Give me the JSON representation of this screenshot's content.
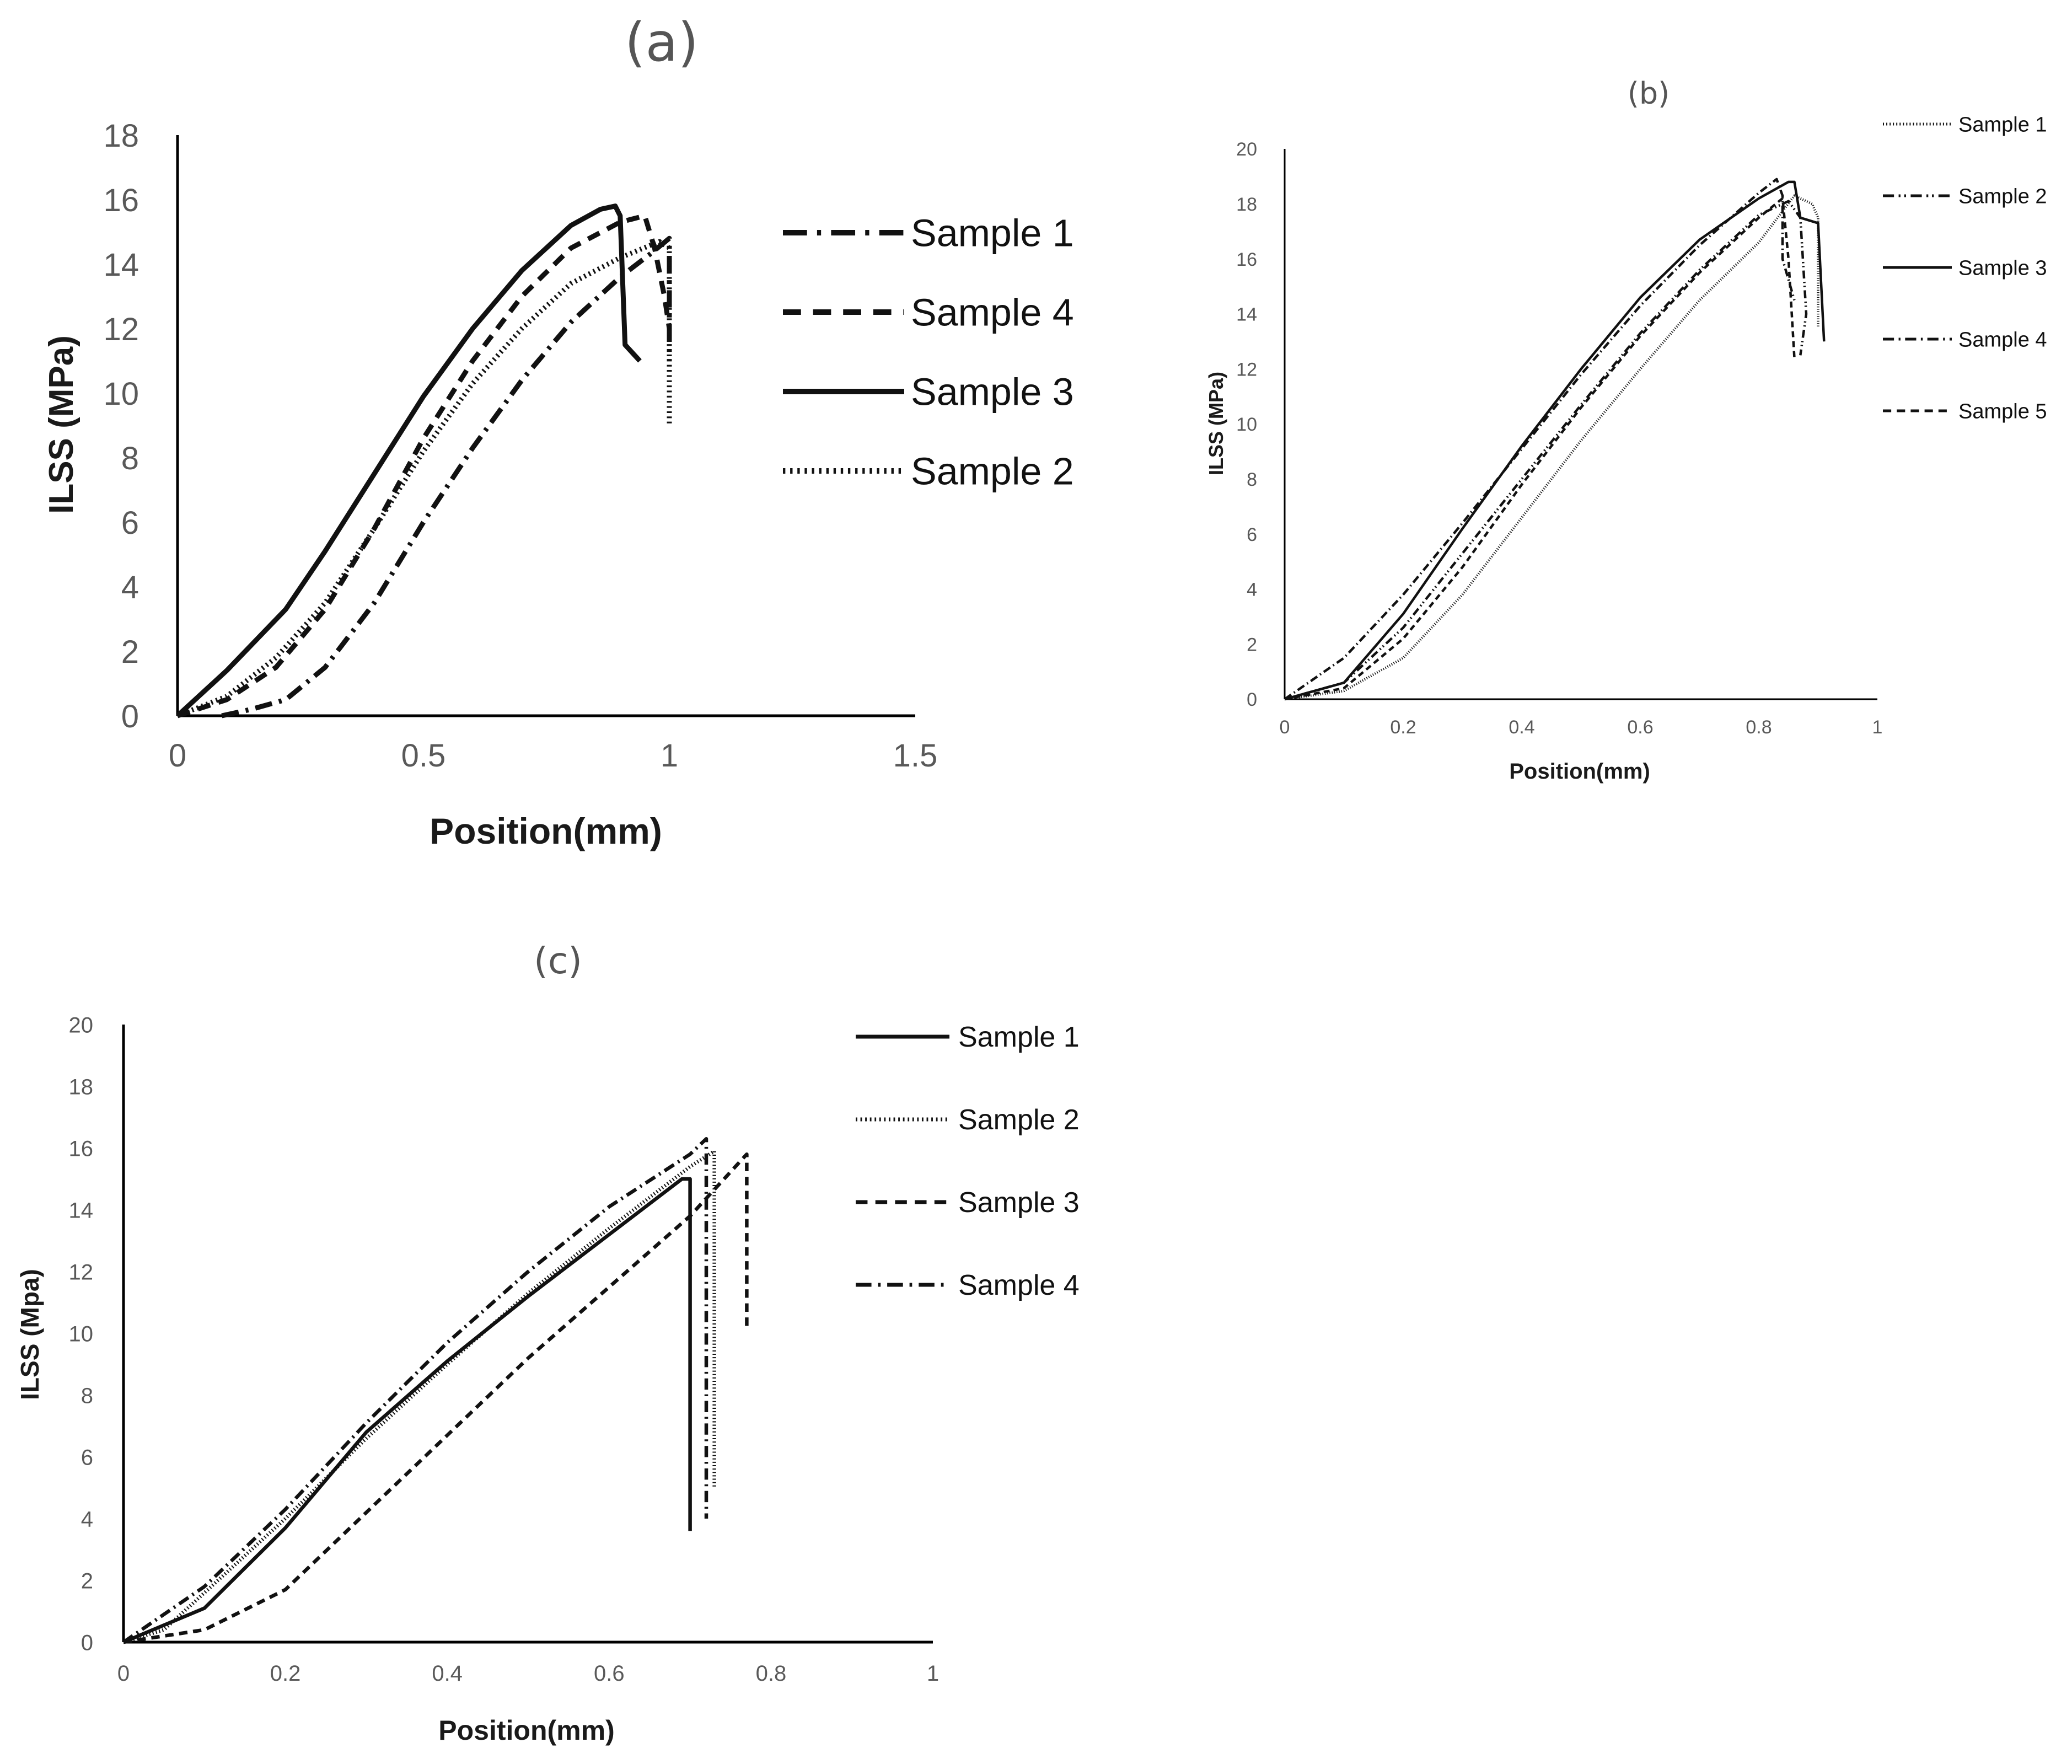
{
  "chart_data": [
    {
      "id": "a",
      "type": "line",
      "title": "(a)",
      "xlabel": "Position(mm)",
      "ylabel": "ILSS (MPa)",
      "xlim": [
        0,
        1.5
      ],
      "ylim": [
        0,
        18
      ],
      "xticks": [
        0,
        0.5,
        1,
        1.5
      ],
      "xtick_labels": [
        "0",
        "0.5",
        "1",
        "1.5"
      ],
      "yticks": [
        0,
        2,
        4,
        6,
        8,
        10,
        12,
        14,
        16,
        18
      ],
      "ytick_labels": [
        "0",
        "2",
        "4",
        "6",
        "8",
        "10",
        "12",
        "14",
        "16",
        "18"
      ],
      "legend_position": "right",
      "series": [
        {
          "name": "Sample 1",
          "style": "dashdot",
          "points": [
            [
              0.09,
              0
            ],
            [
              0.15,
              0.2
            ],
            [
              0.22,
              0.5
            ],
            [
              0.3,
              1.5
            ],
            [
              0.4,
              3.5
            ],
            [
              0.5,
              6
            ],
            [
              0.6,
              8.3
            ],
            [
              0.7,
              10.4
            ],
            [
              0.8,
              12.2
            ],
            [
              0.9,
              13.6
            ],
            [
              0.96,
              14.3
            ],
            [
              1.0,
              14.8
            ],
            [
              1.0,
              11.0
            ]
          ]
        },
        {
          "name": "Sample 4",
          "style": "dashed",
          "points": [
            [
              0,
              0
            ],
            [
              0.1,
              0.5
            ],
            [
              0.2,
              1.5
            ],
            [
              0.3,
              3.3
            ],
            [
              0.4,
              5.8
            ],
            [
              0.5,
              8.6
            ],
            [
              0.6,
              11.0
            ],
            [
              0.7,
              13.0
            ],
            [
              0.8,
              14.5
            ],
            [
              0.9,
              15.3
            ],
            [
              0.95,
              15.5
            ],
            [
              0.97,
              14.5
            ],
            [
              0.99,
              13.0
            ],
            [
              1.0,
              12.0
            ]
          ]
        },
        {
          "name": "Sample 3",
          "style": "solid",
          "points": [
            [
              0,
              0
            ],
            [
              0.1,
              1.4
            ],
            [
              0.22,
              3.3
            ],
            [
              0.3,
              5.1
            ],
            [
              0.4,
              7.5
            ],
            [
              0.5,
              9.9
            ],
            [
              0.6,
              12.0
            ],
            [
              0.7,
              13.8
            ],
            [
              0.8,
              15.2
            ],
            [
              0.86,
              15.7
            ],
            [
              0.89,
              15.8
            ],
            [
              0.9,
              15.5
            ],
            [
              0.91,
              11.5
            ],
            [
              0.94,
              11.0
            ]
          ]
        },
        {
          "name": "Sample 2",
          "style": "dotted",
          "points": [
            [
              0,
              0
            ],
            [
              0.1,
              0.6
            ],
            [
              0.2,
              1.8
            ],
            [
              0.3,
              3.5
            ],
            [
              0.4,
              5.8
            ],
            [
              0.5,
              8.2
            ],
            [
              0.6,
              10.3
            ],
            [
              0.7,
              12.0
            ],
            [
              0.8,
              13.4
            ],
            [
              0.9,
              14.2
            ],
            [
              0.98,
              14.7
            ],
            [
              1.0,
              14.5
            ],
            [
              1.0,
              9.0
            ]
          ]
        }
      ]
    },
    {
      "id": "b",
      "type": "line",
      "title": "(b)",
      "xlabel": "Position(mm)",
      "ylabel": "ILSS (MPa)",
      "xlim": [
        0,
        1
      ],
      "ylim": [
        0,
        20
      ],
      "xticks": [
        0,
        0.2,
        0.4,
        0.6,
        0.8,
        1
      ],
      "xtick_labels": [
        "0",
        "0.2",
        "0.4",
        "0.6",
        "0.8",
        "1"
      ],
      "yticks": [
        0,
        2,
        4,
        6,
        8,
        10,
        12,
        14,
        16,
        18,
        20
      ],
      "ytick_labels": [
        "0",
        "2",
        "4",
        "6",
        "8",
        "10",
        "12",
        "14",
        "16",
        "18",
        "20"
      ],
      "legend_position": "right",
      "series": [
        {
          "name": "Sample 1",
          "style": "dotted",
          "points": [
            [
              0,
              0
            ],
            [
              0.1,
              0.3
            ],
            [
              0.2,
              1.5
            ],
            [
              0.3,
              3.8
            ],
            [
              0.4,
              6.6
            ],
            [
              0.5,
              9.4
            ],
            [
              0.6,
              12.0
            ],
            [
              0.7,
              14.5
            ],
            [
              0.8,
              16.6
            ],
            [
              0.86,
              18.3
            ],
            [
              0.89,
              18.0
            ],
            [
              0.9,
              17.5
            ],
            [
              0.9,
              13.5
            ]
          ]
        },
        {
          "name": "Sample 2",
          "style": "dashdotdot",
          "points": [
            [
              0,
              0
            ],
            [
              0.1,
              0.6
            ],
            [
              0.2,
              2.6
            ],
            [
              0.3,
              5.3
            ],
            [
              0.4,
              8.0
            ],
            [
              0.5,
              10.7
            ],
            [
              0.6,
              13.3
            ],
            [
              0.7,
              15.6
            ],
            [
              0.8,
              17.6
            ],
            [
              0.85,
              18.1
            ],
            [
              0.87,
              17.5
            ],
            [
              0.88,
              14.0
            ],
            [
              0.87,
              12.5
            ]
          ]
        },
        {
          "name": "Sample 3",
          "style": "solid",
          "points": [
            [
              0,
              0
            ],
            [
              0.1,
              0.6
            ],
            [
              0.2,
              3.1
            ],
            [
              0.3,
              6.2
            ],
            [
              0.4,
              9.2
            ],
            [
              0.5,
              12.0
            ],
            [
              0.6,
              14.6
            ],
            [
              0.7,
              16.7
            ],
            [
              0.8,
              18.2
            ],
            [
              0.85,
              18.8
            ],
            [
              0.86,
              18.8
            ],
            [
              0.87,
              17.5
            ],
            [
              0.9,
              17.3
            ],
            [
              0.91,
              13.0
            ]
          ]
        },
        {
          "name": "Sample 4",
          "style": "dashdot",
          "points": [
            [
              0,
              0
            ],
            [
              0.1,
              1.5
            ],
            [
              0.2,
              3.8
            ],
            [
              0.3,
              6.4
            ],
            [
              0.4,
              9.1
            ],
            [
              0.5,
              11.8
            ],
            [
              0.6,
              14.3
            ],
            [
              0.7,
              16.5
            ],
            [
              0.8,
              18.4
            ],
            [
              0.83,
              18.9
            ],
            [
              0.84,
              18.3
            ],
            [
              0.84,
              16.0
            ],
            [
              0.86,
              14.5
            ]
          ]
        },
        {
          "name": "Sample 5",
          "style": "dashed",
          "points": [
            [
              0,
              0
            ],
            [
              0.1,
              0.4
            ],
            [
              0.2,
              2.2
            ],
            [
              0.3,
              4.8
            ],
            [
              0.4,
              7.8
            ],
            [
              0.5,
              10.6
            ],
            [
              0.6,
              13.2
            ],
            [
              0.7,
              15.5
            ],
            [
              0.8,
              17.5
            ],
            [
              0.84,
              18.2
            ],
            [
              0.85,
              16.0
            ],
            [
              0.86,
              12.4
            ]
          ]
        }
      ]
    },
    {
      "id": "c",
      "type": "line",
      "title": "(c)",
      "xlabel": "Position(mm)",
      "ylabel": "ILSS (Mpa)",
      "xlim": [
        0,
        1
      ],
      "ylim": [
        0,
        20
      ],
      "xticks": [
        0,
        0.2,
        0.4,
        0.6,
        0.8,
        1
      ],
      "xtick_labels": [
        "0",
        "0.2",
        "0.4",
        "0.6",
        "0.8",
        "1"
      ],
      "yticks": [
        0,
        2,
        4,
        6,
        8,
        10,
        12,
        14,
        16,
        18,
        20
      ],
      "ytick_labels": [
        "0",
        "2",
        "4",
        "6",
        "8",
        "10",
        "12",
        "14",
        "16",
        "18",
        "20"
      ],
      "legend_position": "right",
      "series": [
        {
          "name": "Sample 1",
          "style": "solid",
          "points": [
            [
              0,
              0
            ],
            [
              0.1,
              1.1
            ],
            [
              0.2,
              3.7
            ],
            [
              0.3,
              6.8
            ],
            [
              0.4,
              9.1
            ],
            [
              0.5,
              11.2
            ],
            [
              0.6,
              13.2
            ],
            [
              0.69,
              15.0
            ],
            [
              0.7,
              15.0
            ],
            [
              0.7,
              3.6
            ]
          ]
        },
        {
          "name": "Sample 2",
          "style": "dotted",
          "points": [
            [
              0,
              0
            ],
            [
              0.05,
              0.4
            ],
            [
              0.1,
              1.6
            ],
            [
              0.2,
              4.0
            ],
            [
              0.3,
              6.6
            ],
            [
              0.4,
              9.0
            ],
            [
              0.5,
              11.3
            ],
            [
              0.6,
              13.4
            ],
            [
              0.7,
              15.4
            ],
            [
              0.73,
              15.9
            ],
            [
              0.73,
              5.0
            ]
          ]
        },
        {
          "name": "Sample 3",
          "style": "dashed",
          "points": [
            [
              0,
              0
            ],
            [
              0.1,
              0.4
            ],
            [
              0.2,
              1.7
            ],
            [
              0.3,
              4.2
            ],
            [
              0.4,
              6.7
            ],
            [
              0.5,
              9.2
            ],
            [
              0.6,
              11.5
            ],
            [
              0.7,
              13.8
            ],
            [
              0.77,
              15.8
            ],
            [
              0.77,
              10.2
            ]
          ]
        },
        {
          "name": "Sample 4",
          "style": "dashdot",
          "points": [
            [
              0,
              0
            ],
            [
              0.1,
              1.8
            ],
            [
              0.2,
              4.3
            ],
            [
              0.3,
              7.1
            ],
            [
              0.4,
              9.7
            ],
            [
              0.5,
              12.0
            ],
            [
              0.6,
              14.1
            ],
            [
              0.7,
              15.8
            ],
            [
              0.72,
              16.3
            ],
            [
              0.72,
              4.0
            ]
          ]
        }
      ]
    }
  ]
}
